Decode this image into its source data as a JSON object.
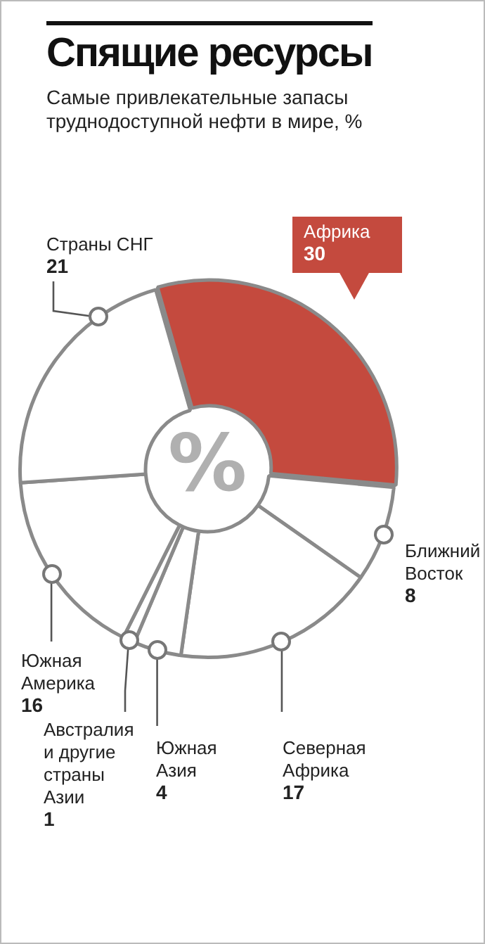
{
  "chart_data": {
    "type": "donut",
    "title": "Спящие ресурсы",
    "subtitle": "Самые привлекательные запасы труднодоступной нефти в мире, %",
    "categories": [
      "Африка",
      "Ближний Восток",
      "Северная Африка",
      "Южная Азия",
      "Австралия и другие страны Азии",
      "Южная Америка",
      "Страны СНГ"
    ],
    "values": [
      30,
      8,
      17,
      4,
      1,
      16,
      21
    ],
    "colors": [
      "#c44a3e",
      "#ffffff",
      "#ffffff",
      "#ffffff",
      "#ffffff",
      "#ffffff",
      "#ffffff"
    ],
    "annotations": [
      "%"
    ],
    "data_labels": true,
    "legend": false
  }
}
